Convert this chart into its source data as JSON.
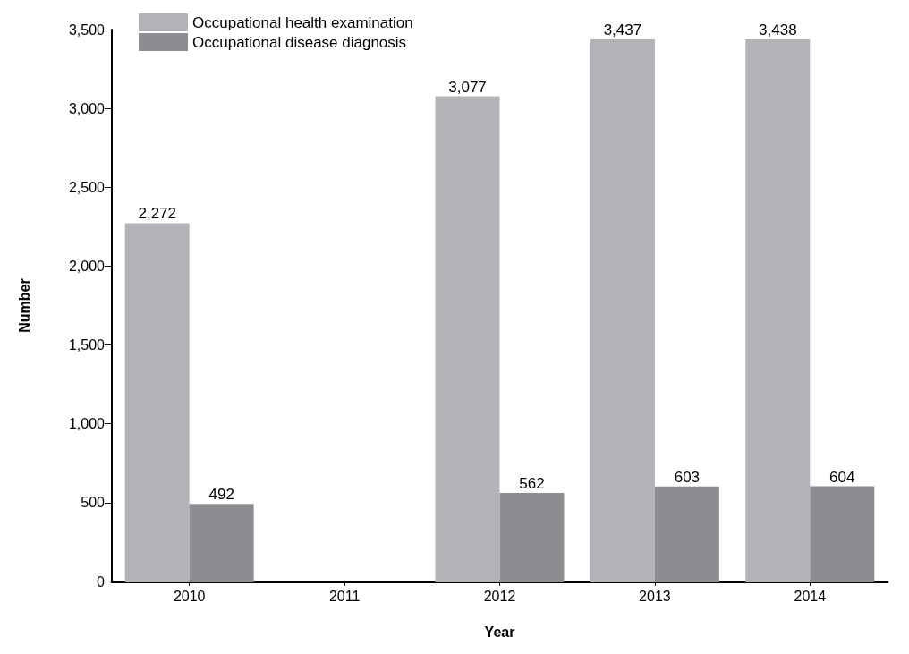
{
  "chart_data": {
    "type": "bar",
    "xlabel": "Year",
    "ylabel": "Number",
    "categories": [
      "2010",
      "2011",
      "2012",
      "2013",
      "2014"
    ],
    "series": [
      {
        "name": "Occupational health examination",
        "color": "#b2b3b6",
        "values": [
          2272,
          null,
          3077,
          3437,
          3438
        ],
        "value_labels": [
          "2,272",
          null,
          "3,077",
          "3,437",
          "3,438"
        ]
      },
      {
        "name": "Occupational disease diagnosis",
        "color": "#8c8d90",
        "values": [
          492,
          null,
          562,
          603,
          604
        ],
        "value_labels": [
          "492",
          null,
          "562",
          "603",
          "604"
        ]
      }
    ],
    "ylim": [
      0,
      3500
    ],
    "yticks": [
      0,
      {
        "value": 500,
        "label": "500"
      },
      {
        "value": 1000,
        "label": "1,000"
      },
      {
        "value": 1500,
        "label": "1,500"
      },
      {
        "value": 2000,
        "label": "2,000"
      },
      {
        "value": 2500,
        "label": "2,500"
      },
      {
        "value": 3000,
        "label": "3,000"
      },
      {
        "value": 3500,
        "label": "3,500"
      }
    ],
    "legend": "top left",
    "grid": false
  }
}
